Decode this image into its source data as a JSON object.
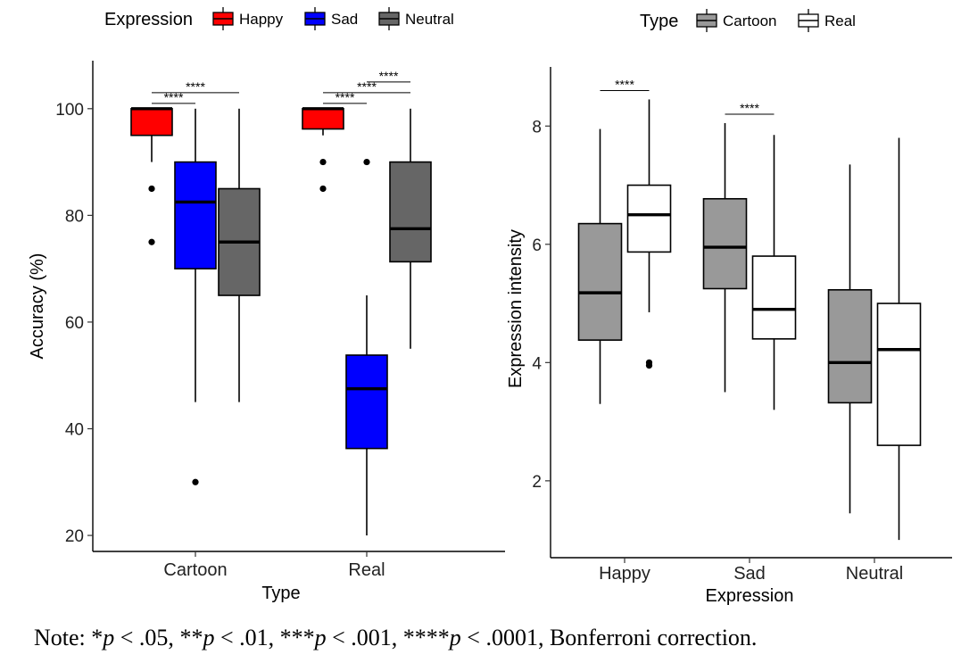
{
  "note": {
    "prefix": "Note: ",
    "items": [
      {
        "stars": "*",
        "p": "p",
        "rel": " < .05, "
      },
      {
        "stars": "**",
        "p": "p",
        "rel": " < .01, "
      },
      {
        "stars": "***",
        "p": "p",
        "rel": " < .001, "
      },
      {
        "stars": "****",
        "p": "p",
        "rel": " < .0001, "
      }
    ],
    "suffix": "Bonferroni correction."
  },
  "chart_data": [
    {
      "type": "box",
      "xlabel": "Type",
      "ylabel": "Accuracy (%)",
      "ylim": [
        17,
        109
      ],
      "yticks": [
        20,
        40,
        60,
        80,
        100
      ],
      "categories": [
        "Cartoon",
        "Real"
      ],
      "legend": {
        "title": "Expression",
        "position": "top",
        "entries": [
          "Happy",
          "Sad",
          "Neutral"
        ]
      },
      "series": [
        {
          "name": "Happy",
          "color": "#ff0000",
          "boxes": [
            {
              "category": "Cartoon",
              "min": 90,
              "q1": 95,
              "median": 100,
              "q3": 100,
              "max": 100,
              "outliers": [
                85,
                75
              ]
            },
            {
              "category": "Real",
              "min": 95,
              "q1": 96.2,
              "median": 100,
              "q3": 100,
              "max": 100,
              "outliers": [
                90,
                85
              ]
            }
          ]
        },
        {
          "name": "Sad",
          "color": "#0000ff",
          "boxes": [
            {
              "category": "Cartoon",
              "min": 45,
              "q1": 70,
              "median": 82.5,
              "q3": 90,
              "max": 100,
              "outliers": [
                30
              ]
            },
            {
              "category": "Real",
              "min": 20,
              "q1": 36.3,
              "median": 47.5,
              "q3": 53.8,
              "max": 65,
              "outliers": [
                90
              ]
            }
          ]
        },
        {
          "name": "Neutral",
          "color": "#666666",
          "boxes": [
            {
              "category": "Cartoon",
              "min": 45,
              "q1": 65,
              "median": 75,
              "q3": 85,
              "max": 100,
              "outliers": []
            },
            {
              "category": "Real",
              "min": 55,
              "q1": 71.3,
              "median": 77.5,
              "q3": 90,
              "max": 100,
              "outliers": []
            }
          ]
        }
      ],
      "annotations": [
        {
          "category": "Cartoon",
          "from": "Happy",
          "to": "Sad",
          "y": 101,
          "label": "****"
        },
        {
          "category": "Cartoon",
          "from": "Happy",
          "to": "Neutral",
          "y": 103,
          "label": "****"
        },
        {
          "category": "Real",
          "from": "Happy",
          "to": "Sad",
          "y": 101,
          "label": "****"
        },
        {
          "category": "Real",
          "from": "Happy",
          "to": "Neutral",
          "y": 103,
          "label": "****"
        },
        {
          "category": "Real",
          "from": "Sad",
          "to": "Neutral",
          "y": 105,
          "label": "****"
        }
      ]
    },
    {
      "type": "box",
      "xlabel": "Expression",
      "ylabel": "Expression intensity",
      "ylim": [
        0.7,
        9.0
      ],
      "yticks": [
        2,
        4,
        6,
        8
      ],
      "categories": [
        "Happy",
        "Sad",
        "Neutral"
      ],
      "legend": {
        "title": "Type",
        "position": "top",
        "entries": [
          "Cartoon",
          "Real"
        ]
      },
      "series": [
        {
          "name": "Cartoon",
          "color": "#999999",
          "boxes": [
            {
              "category": "Happy",
              "min": 3.3,
              "q1": 4.38,
              "median": 5.18,
              "q3": 6.35,
              "max": 7.95,
              "outliers": []
            },
            {
              "category": "Sad",
              "min": 3.5,
              "q1": 5.25,
              "median": 5.95,
              "q3": 6.77,
              "max": 8.05,
              "outliers": []
            },
            {
              "category": "Neutral",
              "min": 1.45,
              "q1": 3.32,
              "median": 4.0,
              "q3": 5.23,
              "max": 7.35,
              "outliers": []
            }
          ]
        },
        {
          "name": "Real",
          "color": "#ffffff",
          "boxes": [
            {
              "category": "Happy",
              "min": 4.85,
              "q1": 5.87,
              "median": 6.5,
              "q3": 7.0,
              "max": 8.45,
              "outliers": [
                4.0,
                3.95
              ]
            },
            {
              "category": "Sad",
              "min": 3.2,
              "q1": 4.4,
              "median": 4.9,
              "q3": 5.8,
              "max": 7.85,
              "outliers": []
            },
            {
              "category": "Neutral",
              "min": 1.0,
              "q1": 2.6,
              "median": 4.22,
              "q3": 5.0,
              "max": 7.8,
              "outliers": []
            }
          ]
        }
      ],
      "annotations": [
        {
          "category": "Happy",
          "from": "Cartoon",
          "to": "Real",
          "y": 8.6,
          "label": "****"
        },
        {
          "category": "Sad",
          "from": "Cartoon",
          "to": "Real",
          "y": 8.2,
          "label": "****"
        }
      ]
    }
  ]
}
